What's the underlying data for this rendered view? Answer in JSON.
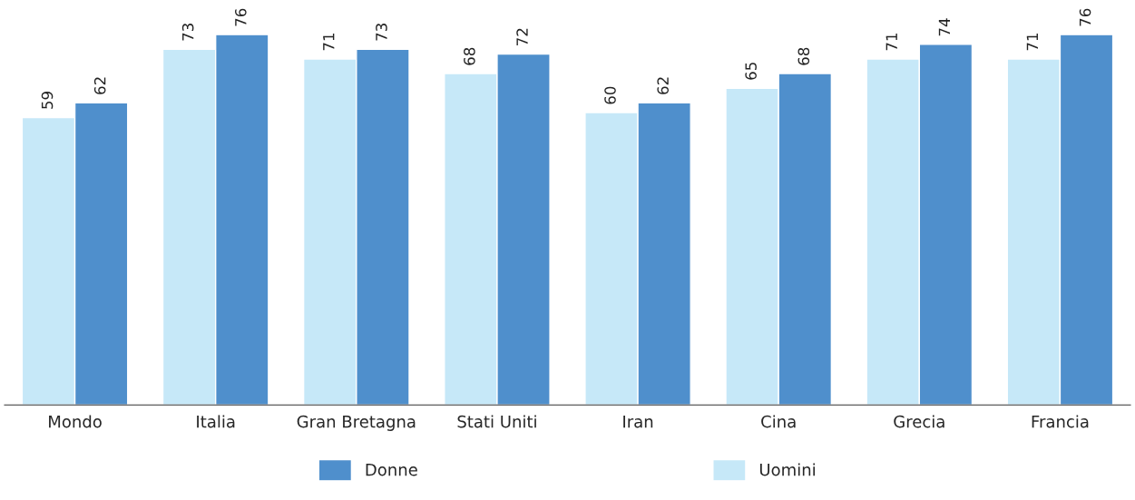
{
  "chart_data": {
    "type": "bar",
    "categories": [
      "Mondo",
      "Italia",
      "Gran Bretagna",
      "Stati Uniti",
      "Iran",
      "Cina",
      "Grecia",
      "Francia"
    ],
    "series": [
      {
        "name": "Uomini",
        "color": "#c6e8f8",
        "values": [
          59,
          73,
          71,
          68,
          60,
          65,
          71,
          71
        ]
      },
      {
        "name": "Donne",
        "color": "#4f8fcc",
        "values": [
          62,
          76,
          73,
          72,
          62,
          68,
          74,
          76
        ]
      }
    ],
    "data_labels": true,
    "legend": "bottom",
    "grid": false
  }
}
